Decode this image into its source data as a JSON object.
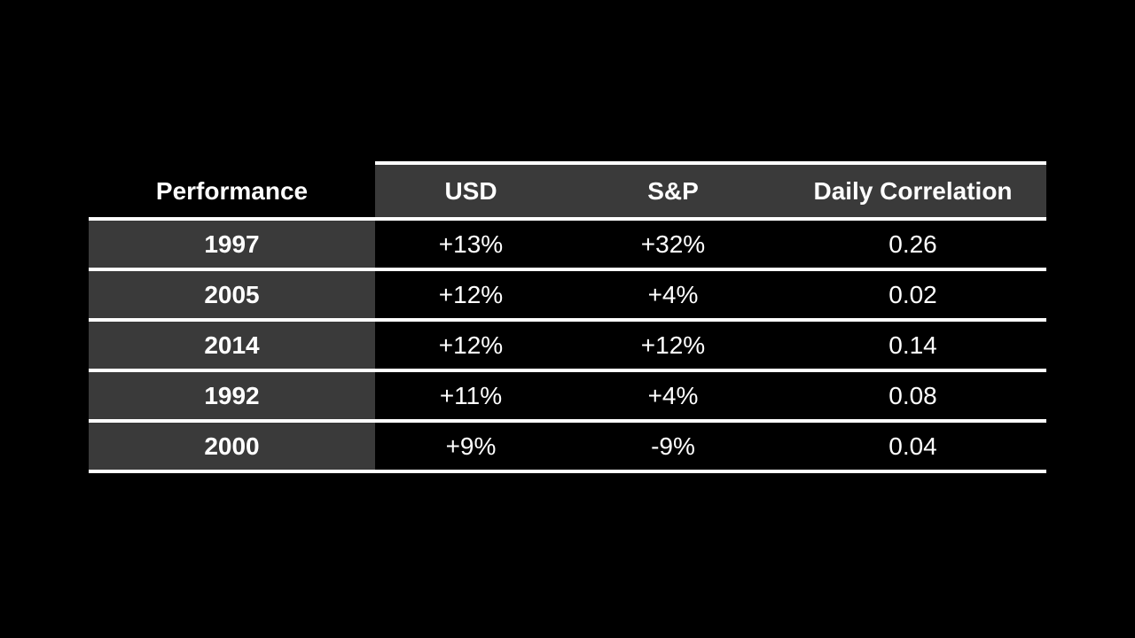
{
  "colors": {
    "background": "#000000",
    "cell_gray": "#3a3a3a",
    "divider_white": "#ffffff",
    "text_white": "#ffffff"
  },
  "table": {
    "label_header": "Performance",
    "column_headers": [
      "USD",
      "S&P",
      "Daily Correlation"
    ],
    "rows": [
      {
        "year": "1997",
        "usd": "+13%",
        "sp": "+32%",
        "correlation": "0.26"
      },
      {
        "year": "2005",
        "usd": "+12%",
        "sp": "+4%",
        "correlation": "0.02"
      },
      {
        "year": "2014",
        "usd": "+12%",
        "sp": "+12%",
        "correlation": "0.14"
      },
      {
        "year": "1992",
        "usd": "+11%",
        "sp": "+4%",
        "correlation": "0.08"
      },
      {
        "year": "2000",
        "usd": "+9%",
        "sp": "-9%",
        "correlation": "0.04"
      }
    ]
  },
  "chart_data": {
    "type": "table",
    "title": "Performance",
    "columns": [
      "Performance",
      "USD",
      "S&P",
      "Daily Correlation"
    ],
    "rows": [
      [
        "1997",
        "+13%",
        "+32%",
        "0.26"
      ],
      [
        "2005",
        "+12%",
        "+4%",
        "0.02"
      ],
      [
        "2014",
        "+12%",
        "+12%",
        "0.14"
      ],
      [
        "1992",
        "+11%",
        "+4%",
        "0.08"
      ],
      [
        "2000",
        "+9%",
        "-9%",
        "0.04"
      ]
    ],
    "layout": {
      "background": "black",
      "header_fill": "#3a3a3a",
      "row_label_fill": "#3a3a3a",
      "data_cell_fill": "#000000",
      "separator": "white horizontal lines",
      "text_align": "center"
    }
  }
}
